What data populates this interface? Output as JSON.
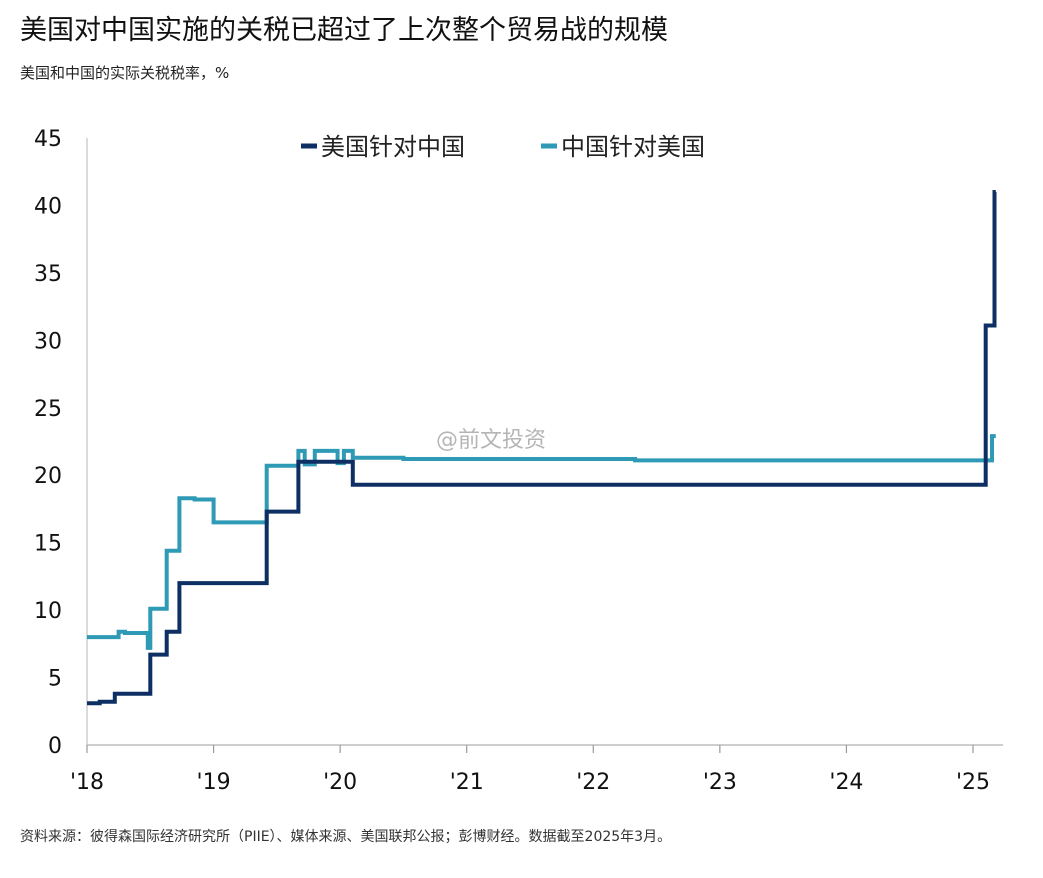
{
  "title": "美国对中国实施的关税已超过了上次整个贸易战的规模",
  "subtitle": "美国和中国的实际关税税率，%",
  "source": "资料来源：彼得森国际经济研究所（PIIE）、媒体来源、美国联邦公报；彭博财经。数据截至2025年3月。",
  "watermark": "@前文投资",
  "chart_data": {
    "type": "line",
    "ylim": [
      0,
      45
    ],
    "xlim": [
      2018.0,
      2025.25
    ],
    "y_ticks": [
      0,
      5,
      10,
      15,
      20,
      25,
      30,
      35,
      40,
      45
    ],
    "x_ticks": [
      {
        "value": 2018,
        "label": "'18"
      },
      {
        "value": 2019,
        "label": "'19"
      },
      {
        "value": 2020,
        "label": "'20"
      },
      {
        "value": 2021,
        "label": "'21"
      },
      {
        "value": 2022,
        "label": "'22"
      },
      {
        "value": 2023,
        "label": "'23"
      },
      {
        "value": 2024,
        "label": "'24"
      },
      {
        "value": 2025,
        "label": "'25"
      }
    ],
    "grid": false,
    "legend_position": "top",
    "series": [
      {
        "name": "美国针对中国",
        "color": "#0d2f63",
        "step": true,
        "points": [
          [
            2018.0,
            3.1
          ],
          [
            2018.1,
            3.2
          ],
          [
            2018.22,
            3.8
          ],
          [
            2018.5,
            6.7
          ],
          [
            2018.63,
            8.4
          ],
          [
            2018.73,
            12.0
          ],
          [
            2019.42,
            17.3
          ],
          [
            2019.67,
            21.0
          ],
          [
            2020.1,
            19.3
          ],
          [
            2025.1,
            31.1
          ],
          [
            2025.17,
            41.0
          ],
          [
            2025.18,
            41.0
          ]
        ]
      },
      {
        "name": "中国针对美国",
        "color": "#2e9ab5",
        "step": true,
        "points": [
          [
            2018.0,
            8.0
          ],
          [
            2018.25,
            8.4
          ],
          [
            2018.3,
            8.3
          ],
          [
            2018.48,
            7.2
          ],
          [
            2018.5,
            10.1
          ],
          [
            2018.63,
            14.4
          ],
          [
            2018.73,
            18.3
          ],
          [
            2018.85,
            18.2
          ],
          [
            2019.0,
            16.5
          ],
          [
            2019.42,
            20.7
          ],
          [
            2019.67,
            21.8
          ],
          [
            2019.72,
            20.8
          ],
          [
            2019.8,
            21.8
          ],
          [
            2019.98,
            20.9
          ],
          [
            2020.03,
            21.8
          ],
          [
            2020.1,
            21.3
          ],
          [
            2020.5,
            21.2
          ],
          [
            2022.33,
            21.1
          ],
          [
            2025.15,
            22.9
          ],
          [
            2025.18,
            22.9
          ]
        ]
      }
    ]
  }
}
